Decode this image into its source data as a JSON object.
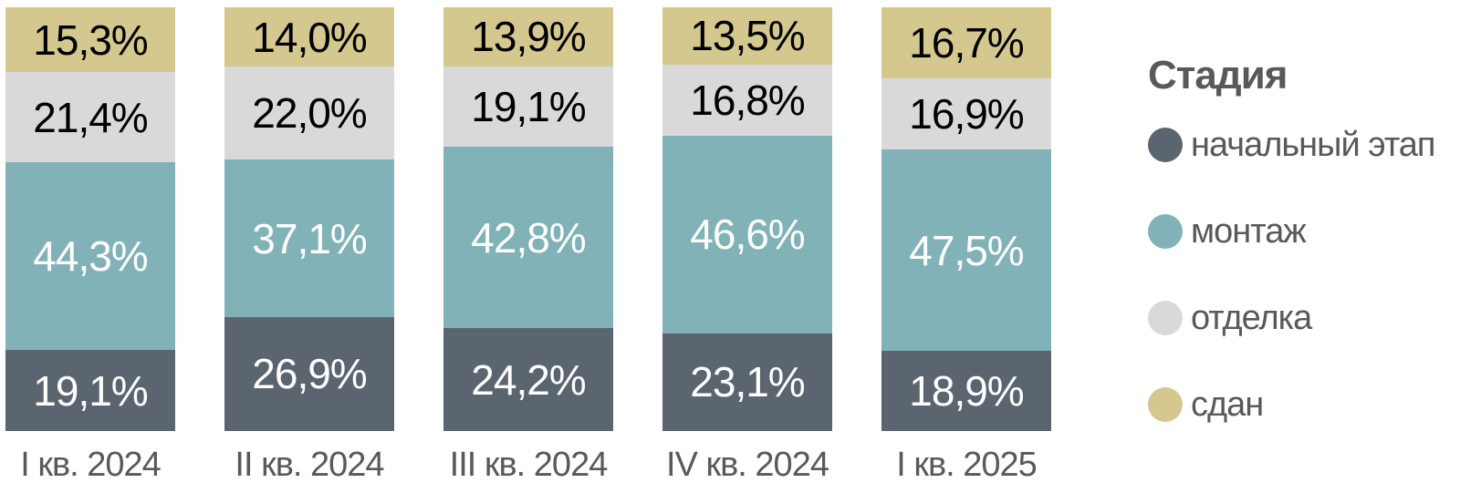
{
  "chart_data": {
    "type": "bar",
    "subtype": "stacked-100-percent",
    "categories": [
      "I кв. 2024",
      "II кв. 2024",
      "III кв. 2024",
      "IV кв. 2024",
      "I кв. 2025"
    ],
    "series": [
      {
        "key": "initial-stage",
        "name": "начальный этап",
        "color": "#5b6570",
        "label_color": "#ffffff",
        "values": [
          19.1,
          26.9,
          24.2,
          23.1,
          18.9
        ]
      },
      {
        "key": "assembly",
        "name": "монтаж",
        "color": "#81b2b8",
        "label_color": "#ffffff",
        "values": [
          44.3,
          37.1,
          42.8,
          46.6,
          47.5
        ]
      },
      {
        "key": "finishing",
        "name": "отделка",
        "color": "#d9d9d9",
        "label_color": "#000000",
        "values": [
          21.4,
          22.0,
          19.1,
          16.8,
          16.9
        ]
      },
      {
        "key": "delivered",
        "name": "сдан",
        "color": "#d4c88e",
        "label_color": "#000000",
        "values": [
          15.3,
          14.0,
          13.9,
          13.5,
          16.7
        ]
      }
    ],
    "stack_order_top_to_bottom": [
      "сдан",
      "отделка",
      "монтаж",
      "начальный этап"
    ],
    "value_format": "one-decimal-comma-percent",
    "ylim": [
      0,
      100
    ],
    "grid": false,
    "legend": {
      "title": "Стадия",
      "position": "right"
    },
    "axis_label_color": "#595959",
    "title": "",
    "xlabel": "",
    "ylabel": ""
  }
}
